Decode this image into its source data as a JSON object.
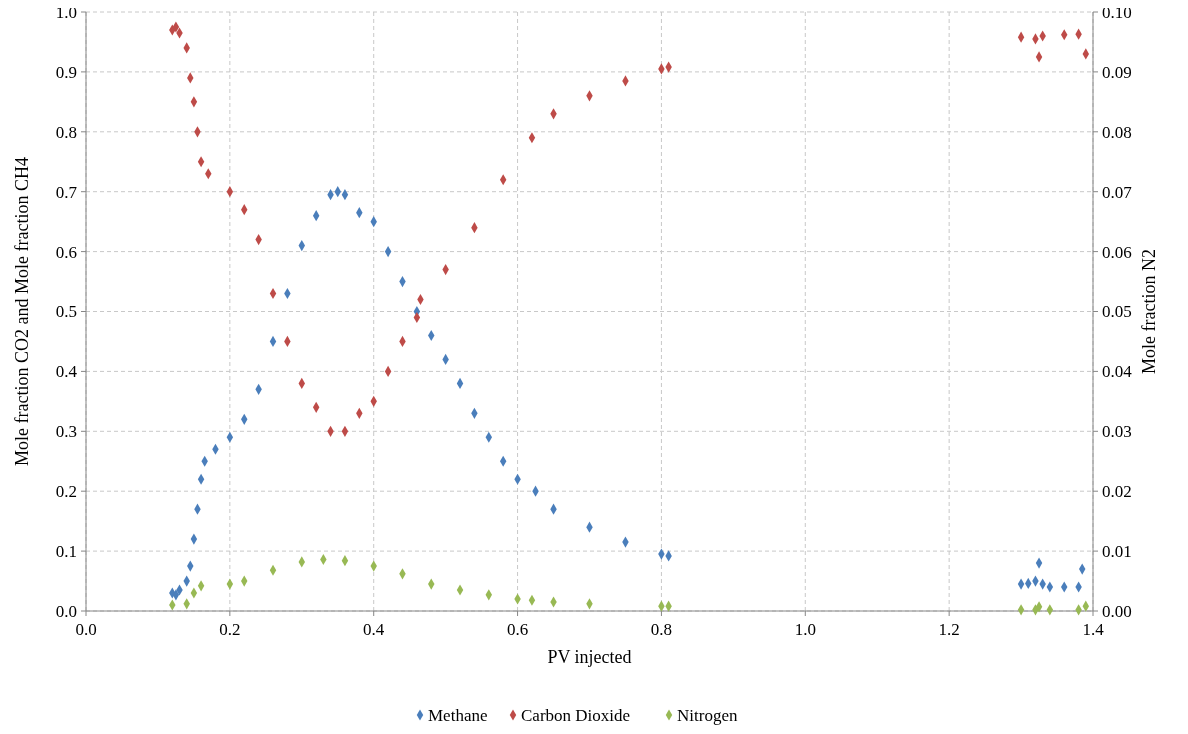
{
  "chart_data": {
    "type": "scatter",
    "xlabel": "PV injected",
    "ylabel": "Mole fraction CO2 and Mole fraction CH4",
    "y2label": "Mole fraction N2",
    "xlim": [
      0,
      1.4
    ],
    "xticks": [
      {
        "value": 0,
        "label": "0.0"
      },
      {
        "value": 0.2,
        "label": "0.2"
      },
      {
        "value": 0.4,
        "label": "0.4"
      },
      {
        "value": 0.6,
        "label": "0.6"
      },
      {
        "value": 0.8,
        "label": "0.8"
      },
      {
        "value": 1,
        "label": "1.0"
      },
      {
        "value": 1.2,
        "label": "1.2"
      },
      {
        "value": 1.4,
        "label": "1.4"
      }
    ],
    "ylim": [
      0,
      1
    ],
    "yticks": [
      {
        "value": 0,
        "label": "0.0"
      },
      {
        "value": 0.1,
        "label": "0.1"
      },
      {
        "value": 0.2,
        "label": "0.2"
      },
      {
        "value": 0.3,
        "label": "0.3"
      },
      {
        "value": 0.4,
        "label": "0.4"
      },
      {
        "value": 0.5,
        "label": "0.5"
      },
      {
        "value": 0.6,
        "label": "0.6"
      },
      {
        "value": 0.7,
        "label": "0.7"
      },
      {
        "value": 0.8,
        "label": "0.8"
      },
      {
        "value": 0.9,
        "label": "0.9"
      },
      {
        "value": 1,
        "label": "1.0"
      }
    ],
    "y2lim": [
      0,
      0.1
    ],
    "y2ticks": [
      {
        "value": 0,
        "label": "0.00"
      },
      {
        "value": 0.01,
        "label": "0.01"
      },
      {
        "value": 0.02,
        "label": "0.02"
      },
      {
        "value": 0.03,
        "label": "0.03"
      },
      {
        "value": 0.04,
        "label": "0.04"
      },
      {
        "value": 0.05,
        "label": "0.05"
      },
      {
        "value": 0.06,
        "label": "0.06"
      },
      {
        "value": 0.07,
        "label": "0.07"
      },
      {
        "value": 0.08,
        "label": "0.08"
      },
      {
        "value": 0.09,
        "label": "0.09"
      },
      {
        "value": 0.1,
        "label": "0.10"
      }
    ],
    "grid": true,
    "legend": "bottom",
    "marker": "diamond",
    "series": [
      {
        "name": "Methane",
        "color": "#4a7ebb",
        "x": [
          0.12,
          0.125,
          0.13,
          0.14,
          0.145,
          0.15,
          0.155,
          0.16,
          0.165,
          0.18,
          0.2,
          0.22,
          0.24,
          0.26,
          0.28,
          0.3,
          0.32,
          0.34,
          0.35,
          0.36,
          0.38,
          0.4,
          0.42,
          0.44,
          0.46,
          0.48,
          0.5,
          0.52,
          0.54,
          0.56,
          0.58,
          0.6,
          0.625,
          0.65,
          0.7,
          0.75,
          0.8,
          0.81,
          1.3,
          1.31,
          1.32,
          1.325,
          1.33,
          1.34,
          1.36,
          1.38,
          1.385
        ],
        "values": [
          0.03,
          0.027,
          0.035,
          0.05,
          0.075,
          0.12,
          0.17,
          0.22,
          0.25,
          0.27,
          0.29,
          0.32,
          0.37,
          0.45,
          0.53,
          0.61,
          0.66,
          0.695,
          0.7,
          0.695,
          0.665,
          0.65,
          0.6,
          0.55,
          0.5,
          0.46,
          0.42,
          0.38,
          0.33,
          0.29,
          0.25,
          0.22,
          0.2,
          0.17,
          0.14,
          0.115,
          0.095,
          0.092,
          0.045,
          0.046,
          0.05,
          0.08,
          0.045,
          0.04,
          0.04,
          0.04,
          0.07
        ]
      },
      {
        "name": "Carbon Dioxide",
        "color": "#be4b48",
        "x": [
          0.12,
          0.125,
          0.13,
          0.14,
          0.145,
          0.15,
          0.155,
          0.16,
          0.17,
          0.2,
          0.22,
          0.24,
          0.26,
          0.28,
          0.3,
          0.32,
          0.34,
          0.36,
          0.38,
          0.4,
          0.42,
          0.44,
          0.46,
          0.465,
          0.5,
          0.54,
          0.58,
          0.62,
          0.65,
          0.7,
          0.75,
          0.8,
          0.81,
          1.3,
          1.32,
          1.325,
          1.33,
          1.36,
          1.38,
          1.39
        ],
        "values": [
          0.97,
          0.975,
          0.965,
          0.94,
          0.89,
          0.85,
          0.8,
          0.75,
          0.73,
          0.7,
          0.67,
          0.62,
          0.53,
          0.45,
          0.38,
          0.34,
          0.3,
          0.3,
          0.33,
          0.35,
          0.4,
          0.45,
          0.49,
          0.52,
          0.57,
          0.64,
          0.72,
          0.79,
          0.83,
          0.86,
          0.885,
          0.905,
          0.908,
          0.958,
          0.955,
          0.925,
          0.96,
          0.962,
          0.963,
          0.93
        ]
      },
      {
        "name": "Nitrogen",
        "color": "#98b954",
        "axis": "y2",
        "x": [
          0.12,
          0.14,
          0.15,
          0.16,
          0.2,
          0.22,
          0.26,
          0.3,
          0.33,
          0.36,
          0.4,
          0.44,
          0.48,
          0.52,
          0.56,
          0.6,
          0.62,
          0.65,
          0.7,
          0.8,
          0.81,
          1.3,
          1.32,
          1.325,
          1.34,
          1.38,
          1.39
        ],
        "values": [
          0.001,
          0.0012,
          0.003,
          0.0042,
          0.0045,
          0.005,
          0.0068,
          0.0082,
          0.0086,
          0.0084,
          0.0075,
          0.0062,
          0.0045,
          0.0035,
          0.0027,
          0.002,
          0.0018,
          0.0015,
          0.0012,
          0.0008,
          0.0008,
          0.0002,
          0.0002,
          0.0007,
          0.0002,
          0.0002,
          0.0008
        ]
      }
    ]
  }
}
